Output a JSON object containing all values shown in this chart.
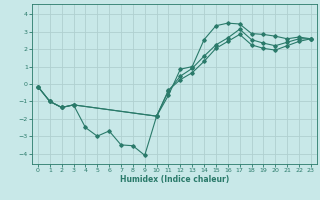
{
  "title": "",
  "xlabel": "Humidex (Indice chaleur)",
  "background_color": "#c8e8e8",
  "grid_color": "#b0d0d0",
  "line_color": "#2a7a6a",
  "xlim": [
    -0.5,
    23.5
  ],
  "ylim": [
    -4.6,
    4.6
  ],
  "xticks": [
    0,
    1,
    2,
    3,
    4,
    5,
    6,
    7,
    8,
    9,
    10,
    11,
    12,
    13,
    14,
    15,
    16,
    17,
    18,
    19,
    20,
    21,
    22,
    23
  ],
  "yticks": [
    -4,
    -3,
    -2,
    -1,
    0,
    1,
    2,
    3,
    4
  ],
  "line1_x": [
    0,
    1,
    2,
    3,
    4,
    5,
    6,
    7,
    8,
    9,
    10,
    11,
    12,
    13,
    14,
    15,
    16,
    17,
    18,
    19,
    20,
    21,
    22,
    23
  ],
  "line1_y": [
    -0.15,
    -1.0,
    -1.35,
    -1.2,
    -2.5,
    -3.0,
    -2.7,
    -3.5,
    -3.55,
    -4.1,
    -1.85,
    -0.65,
    0.85,
    1.0,
    2.55,
    3.35,
    3.5,
    3.45,
    2.9,
    2.85,
    2.75,
    2.6,
    2.7,
    2.6
  ],
  "line2_x": [
    0,
    1,
    2,
    3,
    10,
    11,
    12,
    13,
    14,
    15,
    16,
    17,
    18,
    19,
    20,
    21,
    22,
    23
  ],
  "line2_y": [
    -0.15,
    -1.0,
    -1.35,
    -1.2,
    -1.85,
    -0.4,
    0.45,
    0.9,
    1.6,
    2.25,
    2.65,
    3.15,
    2.55,
    2.35,
    2.2,
    2.4,
    2.6,
    2.6
  ],
  "line3_x": [
    0,
    1,
    2,
    3,
    10,
    11,
    12,
    13,
    14,
    15,
    16,
    17,
    18,
    19,
    20,
    21,
    22,
    23
  ],
  "line3_y": [
    -0.15,
    -1.0,
    -1.35,
    -1.2,
    -1.85,
    -0.35,
    0.25,
    0.65,
    1.3,
    2.05,
    2.45,
    2.85,
    2.25,
    2.05,
    1.95,
    2.2,
    2.45,
    2.6
  ]
}
